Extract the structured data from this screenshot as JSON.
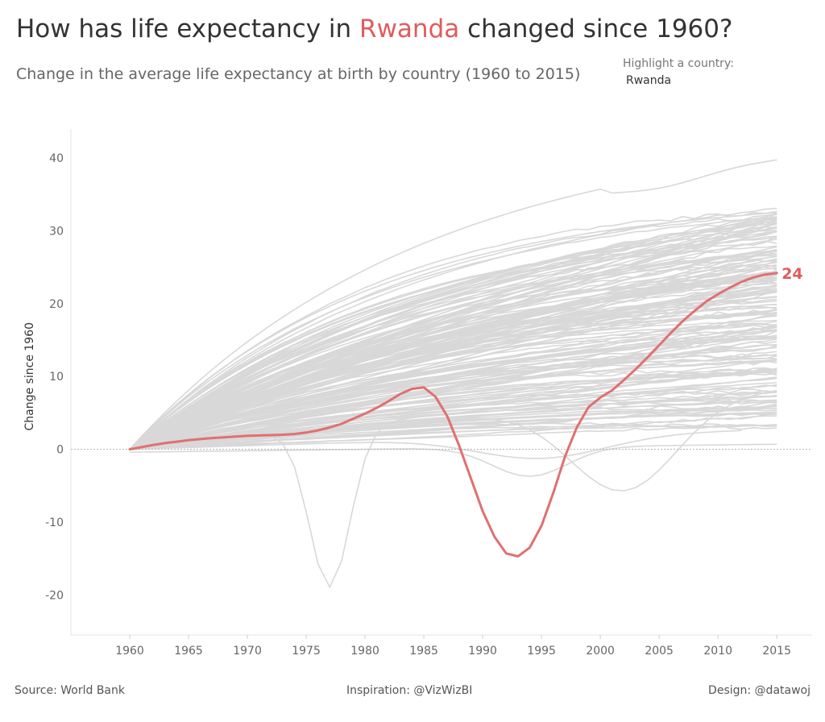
{
  "title": {
    "prefix": "How has life expectancy in ",
    "highlight": "Rwanda",
    "suffix": " changed since 1960?"
  },
  "subtitle": "Change in the average life expectancy at birth by country (1960 to 2015)",
  "filter": {
    "label": "Highlight a country:",
    "value": "Rwanda"
  },
  "footer": {
    "source": "Source: World Bank",
    "inspiration": "Inspiration: @VizWizBI",
    "design": "Design: @datawoj"
  },
  "colors": {
    "highlight": "#e07070",
    "background_lines": "#d8d8d8",
    "zero_line": "#b0b0b0",
    "axis_text": "#666666"
  },
  "chart_data": {
    "type": "line",
    "ylabel": "Change since 1960",
    "xlim": [
      1955,
      2018
    ],
    "ylim": [
      -25.5,
      44
    ],
    "x_ticks": [
      1960,
      1965,
      1970,
      1975,
      1980,
      1985,
      1990,
      1995,
      2000,
      2005,
      2010,
      2015
    ],
    "y_ticks": [
      -20,
      -10,
      0,
      10,
      20,
      30,
      40
    ],
    "zero_line": true,
    "grid": false,
    "end_label": "24",
    "highlight_series": {
      "name": "Rwanda",
      "x": [
        1960,
        1961,
        1962,
        1963,
        1964,
        1965,
        1966,
        1967,
        1968,
        1969,
        1970,
        1971,
        1972,
        1973,
        1974,
        1975,
        1976,
        1977,
        1978,
        1979,
        1980,
        1981,
        1982,
        1983,
        1984,
        1985,
        1986,
        1987,
        1988,
        1989,
        1990,
        1991,
        1992,
        1993,
        1994,
        1995,
        1996,
        1997,
        1998,
        1999,
        2000,
        2001,
        2002,
        2003,
        2004,
        2005,
        2006,
        2007,
        2008,
        2009,
        2010,
        2011,
        2012,
        2013,
        2014,
        2015
      ],
      "y": [
        0,
        0.3,
        0.6,
        0.85,
        1.05,
        1.25,
        1.4,
        1.55,
        1.65,
        1.75,
        1.85,
        1.9,
        1.95,
        2.0,
        2.1,
        2.3,
        2.6,
        3.0,
        3.5,
        4.2,
        4.9,
        5.7,
        6.6,
        7.6,
        8.3,
        8.5,
        7.2,
        4.5,
        0.5,
        -4,
        -8.5,
        -12,
        -14.3,
        -14.7,
        -13.5,
        -10.5,
        -6,
        -1,
        3,
        5.8,
        7.1,
        8.1,
        9.5,
        11,
        12.6,
        14.3,
        16,
        17.6,
        19,
        20.3,
        21.3,
        22.2,
        23,
        23.6,
        24,
        24.2
      ]
    },
    "background_series_count": 180
  }
}
